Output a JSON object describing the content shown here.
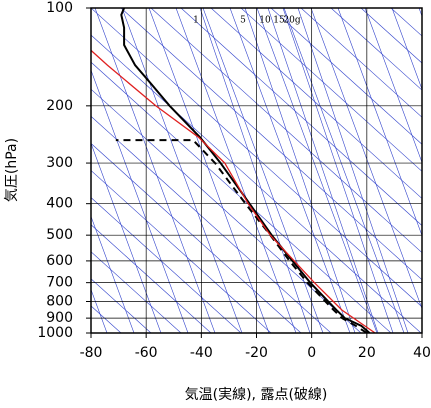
{
  "chart_data": {
    "type": "sounding",
    "xlabel": "気温(実線), 露点(破線)",
    "ylabel": "気圧(hPa)",
    "xlim": [
      -80,
      40
    ],
    "xticks": [
      -80,
      -60,
      -40,
      -20,
      0,
      20,
      40
    ],
    "ylim": [
      1000,
      100
    ],
    "yticks": [
      100,
      200,
      300,
      400,
      500,
      600,
      700,
      800,
      900,
      1000
    ],
    "log_y": true,
    "grid": true,
    "annotations": [
      "1",
      "5",
      "10",
      "15",
      "20g"
    ],
    "series": [
      {
        "color": "#000000",
        "style": "solid",
        "x": [
          21,
          18,
          12,
          9,
          6,
          -0.5,
          -7,
          -14.5,
          -22.5,
          -33,
          -40.5,
          -51.5,
          -58.5,
          -64,
          -68,
          -68,
          -69,
          -68
        ],
        "values": [
          1000,
          950,
          900,
          850,
          800,
          700,
          600,
          500,
          400,
          300,
          250,
          200,
          170,
          150,
          130,
          115,
          105,
          100
        ]
      },
      {
        "color": "#000000",
        "style": "dashed",
        "x": [
          20,
          16,
          11,
          8,
          5,
          -1.5,
          -8,
          -15,
          -24,
          -35,
          -43,
          -71
        ],
        "values": [
          1000,
          950,
          900,
          850,
          800,
          700,
          600,
          500,
          400,
          300,
          255,
          255
        ]
      },
      {
        "color": "#e02020",
        "style": "solid",
        "x": [
          23,
          11,
          1,
          -15,
          -23,
          -31.5,
          -41,
          -56.5,
          -74,
          -80
        ],
        "values": [
          1000,
          850,
          700,
          500,
          400,
          300,
          250,
          200,
          150,
          135
        ]
      }
    ]
  }
}
